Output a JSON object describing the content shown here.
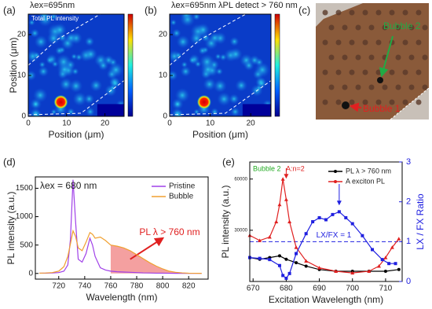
{
  "chart_data": [
    {
      "type": "heatmap",
      "label": "(a)",
      "title": "λex=695nm",
      "annotation": "Total PL intensity",
      "xlabel": "Position (μm)",
      "ylabel": "Position (μm)",
      "xlim": [
        0,
        25
      ],
      "xticks": [
        0,
        10,
        20
      ],
      "ylim": [
        0,
        25
      ],
      "yticks": [
        0,
        10,
        20
      ],
      "colorbar": true
    },
    {
      "type": "heatmap",
      "label": "(b)",
      "title": "λex=695nm",
      "subtitle": "λPL detect > 760 nm",
      "xlabel": "Position (μm)",
      "xlim": [
        0,
        25
      ],
      "xticks": [
        0,
        10,
        20
      ],
      "ylim": [
        0,
        25
      ],
      "yticks": [
        0,
        10,
        20
      ],
      "colorbar": true
    },
    {
      "type": "image",
      "label": "(c)",
      "annotations": [
        {
          "text": "Bubble 2",
          "color": "#22aa44"
        },
        {
          "text": "Bubble 1",
          "color": "#e02020"
        }
      ]
    },
    {
      "type": "line",
      "label": "(d)",
      "annotation": "λex = 680 nm",
      "shade_label": "PL λ > 760 nm",
      "xlabel": "Wavelength (nm)",
      "ylabel": "PL intensity (a.u.)",
      "xlim": [
        702,
        835
      ],
      "xticks": [
        720,
        740,
        760,
        780,
        800,
        820
      ],
      "ylim": [
        -100,
        1700
      ],
      "yticks": [
        0,
        500,
        1000,
        1500
      ],
      "shade_xmin": 760,
      "shade_color": "#f4a0a0",
      "x": [
        705,
        710,
        715,
        720,
        724,
        727,
        729,
        731,
        733,
        735,
        738,
        741,
        744,
        746,
        748,
        752,
        756,
        760,
        765,
        770,
        775,
        780,
        785,
        790,
        795,
        800,
        805,
        810,
        815,
        820,
        825,
        830
      ],
      "series": [
        {
          "name": "Pristine",
          "color": "#a040e8",
          "values": [
            5,
            5,
            8,
            15,
            40,
            150,
            600,
            1650,
            900,
            250,
            200,
            350,
            620,
            500,
            300,
            100,
            60,
            40,
            30,
            25,
            20,
            15,
            10,
            8,
            5,
            5,
            3,
            2,
            2,
            1,
            1,
            1
          ]
        },
        {
          "name": "Bubble",
          "color": "#f0a030",
          "values": [
            5,
            8,
            15,
            40,
            120,
            300,
            520,
            750,
            650,
            450,
            400,
            550,
            720,
            690,
            620,
            640,
            580,
            500,
            480,
            450,
            400,
            330,
            260,
            190,
            130,
            80,
            40,
            20,
            10,
            5,
            3,
            2
          ]
        }
      ]
    },
    {
      "type": "line",
      "label": "(e)",
      "annotations": [
        {
          "text": "Bubble 2",
          "color": "#22aa22"
        },
        {
          "text": "A:n=2",
          "color": "#e02020"
        }
      ],
      "xlabel": "Excitation Wavelength (nm)",
      "ylabel": "PL intensity (a.u.)",
      "y2label": "LX / FX Ratio",
      "xlim": [
        669,
        715
      ],
      "xticks": [
        670,
        680,
        690,
        700,
        710
      ],
      "ylim": [
        0,
        70000
      ],
      "yticks": [
        30000,
        60000
      ],
      "y2lim": [
        0,
        3
      ],
      "y2ticks": [
        0,
        1,
        2,
        3
      ],
      "y2color": "#2020e0",
      "hline": {
        "value": 1,
        "label": "LX/FX = 1"
      },
      "series": [
        {
          "name": "PL λ > 760 nm",
          "color": "#000000",
          "marker": "circle",
          "x": [
            669,
            672,
            675,
            678,
            680,
            683,
            686,
            690,
            695,
            700,
            705,
            710,
            714
          ],
          "values": [
            14000,
            13000,
            14000,
            15000,
            13000,
            11000,
            9000,
            7000,
            6000,
            6000,
            6000,
            6000,
            7000
          ]
        },
        {
          "name": "A exciton PL",
          "color": "#e02020",
          "marker": "triangle",
          "x": [
            669,
            672,
            675,
            677,
            678,
            679,
            680,
            681,
            683,
            686,
            690,
            695,
            700,
            705,
            708,
            710,
            712,
            714
          ],
          "values": [
            27000,
            24000,
            26000,
            35000,
            45000,
            60000,
            48000,
            35000,
            20000,
            12000,
            8000,
            6000,
            5000,
            6000,
            9000,
            14000,
            20000,
            25000
          ]
        },
        {
          "color": "#2020e0",
          "marker": "square",
          "axis": "y2",
          "x": [
            669,
            672,
            675,
            678,
            679,
            680,
            681,
            683,
            686,
            688,
            690,
            692,
            694,
            696,
            698,
            700,
            703,
            706,
            709,
            711,
            713
          ],
          "values": [
            0.6,
            0.58,
            0.55,
            0.4,
            0.15,
            0.08,
            0.2,
            0.7,
            1.2,
            1.5,
            1.6,
            1.55,
            1.68,
            1.75,
            1.6,
            1.45,
            1.15,
            0.8,
            0.55,
            0.45,
            0.45
          ]
        }
      ]
    }
  ]
}
